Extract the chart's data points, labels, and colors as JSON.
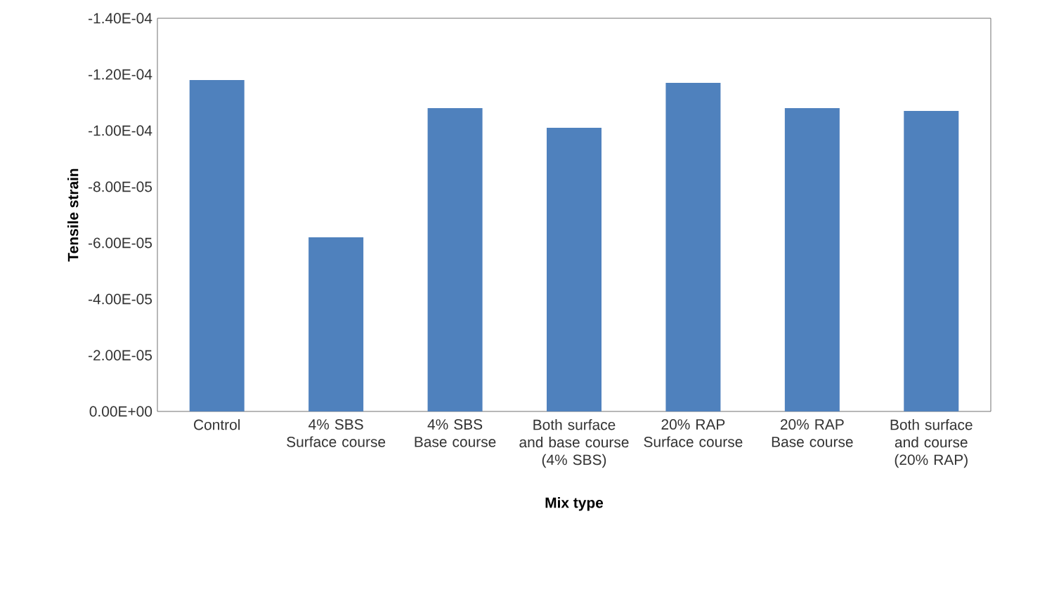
{
  "chart_data": {
    "type": "bar",
    "xlabel": "Mix type",
    "ylabel": "Tensile strain",
    "categories": [
      "Control",
      "4% SBS Surface course",
      "4% SBS Base course",
      "Both surface and base course (4% SBS)",
      "20% RAP Surface course",
      "20% RAP Base course",
      "Both surface and course (20% RAP)"
    ],
    "values": [
      -0.000118,
      -6.2e-05,
      -0.000108,
      -0.000101,
      -0.000117,
      -0.000108,
      -0.000107
    ],
    "color": "#4f81bd",
    "ylim": [
      0,
      -0.00014
    ],
    "yticks": [
      {
        "value": 0,
        "label": "0.00E+00"
      },
      {
        "value": -2e-05,
        "label": "-2.00E-05"
      },
      {
        "value": -4e-05,
        "label": "-4.00E-05"
      },
      {
        "value": -6e-05,
        "label": "-6.00E-05"
      },
      {
        "value": -8e-05,
        "label": "-8.00E-05"
      },
      {
        "value": -0.0001,
        "label": "-1.00E-04"
      },
      {
        "value": -0.00012,
        "label": "-1.20E-04"
      },
      {
        "value": -0.00014,
        "label": "-1.40E-04"
      }
    ],
    "line_style": "solid"
  }
}
